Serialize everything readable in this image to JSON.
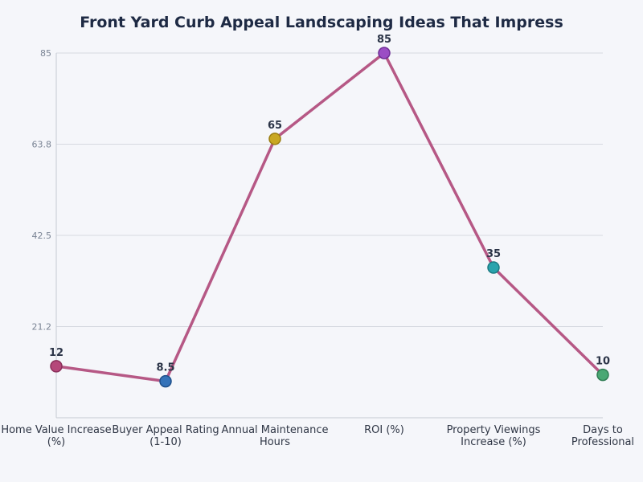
{
  "chart_data": {
    "type": "line",
    "title": "Front Yard Curb Appeal Landscaping Ideas That Impress",
    "xlabel": "",
    "ylabel": "",
    "categories": [
      [
        "Home Value Increase",
        "(%)"
      ],
      [
        "Buyer Appeal Rating",
        "(1-10)"
      ],
      [
        "Annual Maintenance",
        "Hours"
      ],
      [
        "ROI (%)"
      ],
      [
        "Property Viewings",
        "Increase (%)"
      ],
      [
        "Days to",
        "Professional"
      ]
    ],
    "values": [
      12,
      8.5,
      65,
      85,
      35,
      10
    ],
    "data_labels": [
      "12",
      "8.5",
      "65",
      "85",
      "35",
      "10"
    ],
    "point_colors": [
      "#b5487a",
      "#3573b9",
      "#c9a722",
      "#9b4dc4",
      "#2aa3ad",
      "#4aa874"
    ],
    "point_stroke_colors": [
      "#8a2f5a",
      "#1f4f8a",
      "#9a7d10",
      "#6f2f96",
      "#1c7a82",
      "#2f7d53"
    ],
    "line_color": "#b24f7e",
    "yticks": [
      "21.2",
      "42.5",
      "63.8",
      "85"
    ],
    "ytick_values": [
      21.25,
      42.5,
      63.75,
      85
    ],
    "ylim": [
      0,
      85
    ],
    "grid": true,
    "legend": "none"
  }
}
